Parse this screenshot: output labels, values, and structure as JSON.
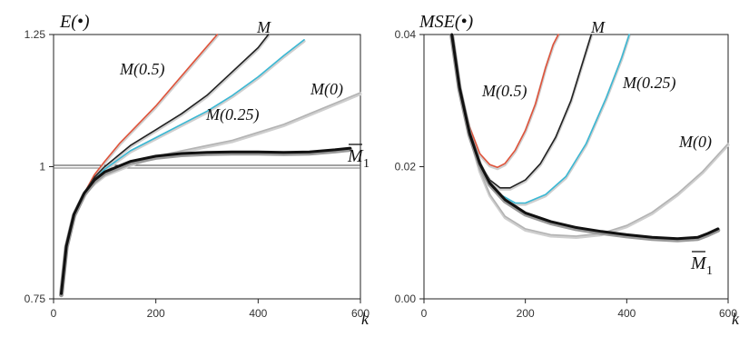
{
  "chart_data": [
    {
      "type": "line",
      "ylabel": "E(•)",
      "xlabel": "k",
      "xlim": [
        0,
        600
      ],
      "ylim": [
        0.75,
        1.25
      ],
      "x_ticks": [
        "0",
        "200",
        "400",
        "600"
      ],
      "y_ticks": [
        "0.75",
        "1",
        "1.25"
      ],
      "reference_line": 1.0,
      "grid": false,
      "series": [
        {
          "name": "M(0.5)",
          "color": "#e0533a",
          "x": [
            15,
            25,
            40,
            60,
            80,
            100,
            130,
            160,
            200,
            240,
            280,
            320
          ],
          "y": [
            0.76,
            0.85,
            0.91,
            0.95,
            0.985,
            1.01,
            1.045,
            1.075,
            1.115,
            1.16,
            1.205,
            1.25
          ]
        },
        {
          "name": "M",
          "color": "#222222",
          "x": [
            15,
            25,
            40,
            60,
            80,
            100,
            150,
            200,
            250,
            300,
            350,
            400,
            420
          ],
          "y": [
            0.76,
            0.85,
            0.91,
            0.95,
            0.98,
            1.0,
            1.04,
            1.07,
            1.1,
            1.135,
            1.18,
            1.225,
            1.25
          ]
        },
        {
          "name": "M(0.25)",
          "color": "#3ab8d4",
          "x": [
            15,
            25,
            40,
            60,
            80,
            100,
            150,
            200,
            250,
            300,
            350,
            400,
            450,
            490
          ],
          "y": [
            0.76,
            0.85,
            0.91,
            0.95,
            0.975,
            0.995,
            1.03,
            1.055,
            1.08,
            1.105,
            1.135,
            1.17,
            1.21,
            1.24
          ]
        },
        {
          "name": "M(0)",
          "color": "#b3b3b3",
          "x": [
            15,
            25,
            40,
            60,
            80,
            100,
            150,
            200,
            250,
            300,
            350,
            400,
            450,
            500,
            550,
            600
          ],
          "y": [
            0.76,
            0.85,
            0.91,
            0.95,
            0.97,
            0.985,
            1.005,
            1.02,
            1.03,
            1.04,
            1.05,
            1.065,
            1.08,
            1.1,
            1.12,
            1.14
          ]
        },
        {
          "name": "M̄1",
          "color": "#111111",
          "x": [
            15,
            25,
            40,
            60,
            80,
            100,
            150,
            200,
            250,
            300,
            350,
            400,
            450,
            500,
            550,
            580
          ],
          "y": [
            0.76,
            0.85,
            0.91,
            0.95,
            0.975,
            0.99,
            1.01,
            1.02,
            1.025,
            1.027,
            1.028,
            1.028,
            1.027,
            1.028,
            1.032,
            1.035
          ]
        }
      ],
      "labels": {
        "ylabel_text": "E(•)",
        "xlabel_text": "k",
        "m05": "M(0.5)",
        "m": "M",
        "m025": "M(0.25)",
        "m0": "M(0)",
        "mbar_main": "M",
        "mbar_sub": "1"
      }
    },
    {
      "type": "line",
      "ylabel": "MSE(•)",
      "xlabel": "k",
      "xlim": [
        0,
        600
      ],
      "ylim": [
        0.0,
        0.04
      ],
      "x_ticks": [
        "0",
        "200",
        "400",
        "600"
      ],
      "y_ticks": [
        "0.00",
        "0.02",
        "0.04"
      ],
      "grid": false,
      "series": [
        {
          "name": "M(0.5)",
          "color": "#e0533a",
          "x": [
            55,
            70,
            90,
            110,
            130,
            145,
            160,
            180,
            200,
            220,
            240,
            255,
            265
          ],
          "y": [
            0.04,
            0.032,
            0.026,
            0.022,
            0.0203,
            0.0199,
            0.0205,
            0.0225,
            0.0255,
            0.0295,
            0.035,
            0.0385,
            0.04
          ]
        },
        {
          "name": "M",
          "color": "#222222",
          "x": [
            55,
            70,
            90,
            110,
            130,
            150,
            170,
            200,
            230,
            260,
            290,
            310,
            330
          ],
          "y": [
            0.04,
            0.032,
            0.025,
            0.0205,
            0.018,
            0.0168,
            0.0168,
            0.018,
            0.0205,
            0.0245,
            0.03,
            0.035,
            0.04
          ]
        },
        {
          "name": "M(0.25)",
          "color": "#3ab8d4",
          "x": [
            55,
            70,
            90,
            110,
            130,
            150,
            180,
            200,
            240,
            280,
            320,
            360,
            390,
            405
          ],
          "y": [
            0.04,
            0.032,
            0.025,
            0.0205,
            0.0175,
            0.0158,
            0.0145,
            0.0145,
            0.0158,
            0.0185,
            0.0235,
            0.0305,
            0.0365,
            0.04
          ]
        },
        {
          "name": "M(0)",
          "color": "#b3b3b3",
          "x": [
            55,
            70,
            90,
            110,
            130,
            160,
            200,
            250,
            300,
            350,
            400,
            450,
            500,
            550,
            600
          ],
          "y": [
            0.04,
            0.032,
            0.025,
            0.0195,
            0.0158,
            0.0125,
            0.0106,
            0.0097,
            0.0095,
            0.0099,
            0.0111,
            0.0131,
            0.0159,
            0.0193,
            0.0235
          ]
        },
        {
          "name": "M̄1",
          "color": "#111111",
          "x": [
            55,
            70,
            90,
            110,
            130,
            160,
            200,
            250,
            300,
            350,
            400,
            450,
            500,
            540,
            560,
            580
          ],
          "y": [
            0.04,
            0.032,
            0.025,
            0.0205,
            0.0175,
            0.015,
            0.013,
            0.0117,
            0.0108,
            0.0102,
            0.0097,
            0.0093,
            0.0091,
            0.0093,
            0.0099,
            0.0106
          ]
        }
      ],
      "labels": {
        "ylabel_text": "MSE(•)",
        "xlabel_text": "k",
        "m05": "M(0.5)",
        "m": "M",
        "m025": "M(0.25)",
        "m0": "M(0)",
        "mbar_main": "M",
        "mbar_sub": "1"
      }
    }
  ]
}
